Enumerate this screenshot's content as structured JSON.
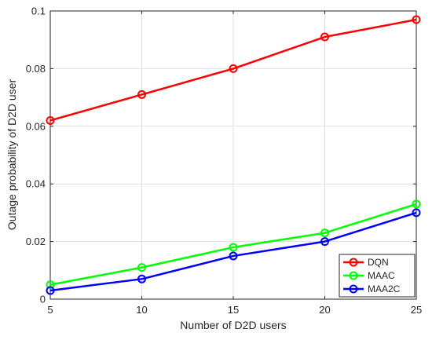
{
  "chart_data": {
    "type": "line",
    "title": "",
    "xlabel": "Number of D2D users",
    "ylabel": "Outage probability of D2D user",
    "x": [
      5,
      10,
      15,
      20,
      25
    ],
    "xlim": [
      5,
      25
    ],
    "ylim": [
      0,
      0.1
    ],
    "xticks": [
      5,
      10,
      15,
      20,
      25
    ],
    "yticks": [
      0,
      0.02,
      0.04,
      0.06,
      0.08,
      0.1
    ],
    "xtick_labels": [
      "5",
      "10",
      "15",
      "20",
      "25"
    ],
    "ytick_labels": [
      "0",
      "0.02",
      "0.04",
      "0.06",
      "0.08",
      "0.1"
    ],
    "grid": true,
    "legend_position": "bottom-right",
    "marker": "circle",
    "series": [
      {
        "name": "DQN",
        "color": "#ff0000",
        "values": [
          0.062,
          0.071,
          0.08,
          0.091,
          0.097
        ]
      },
      {
        "name": "MAAC",
        "color": "#00ff00",
        "values": [
          0.005,
          0.011,
          0.018,
          0.023,
          0.033
        ]
      },
      {
        "name": "MAA2C",
        "color": "#0000ff",
        "values": [
          0.003,
          0.007,
          0.015,
          0.02,
          0.03
        ]
      }
    ]
  }
}
